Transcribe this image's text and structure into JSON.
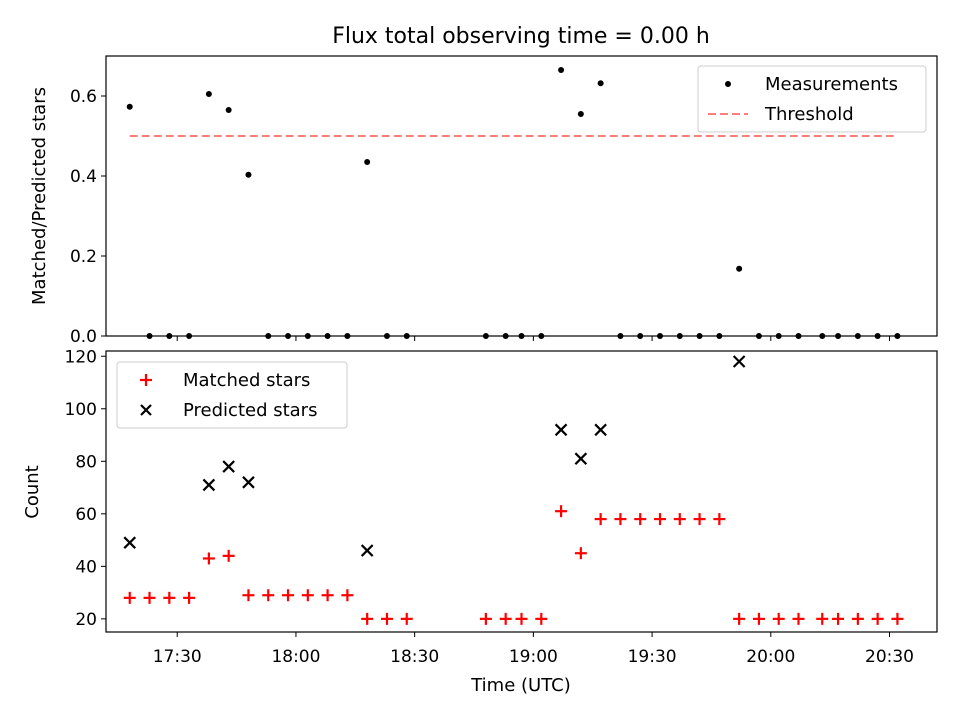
{
  "chart_data": [
    {
      "type": "scatter",
      "title": "Flux total observing time = 0.00 h",
      "xlabel": "",
      "ylabel": "Matched/Predicted stars",
      "ylim": [
        0.0,
        0.7
      ],
      "yticks": [
        0.0,
        0.2,
        0.4,
        0.6
      ],
      "ytick_labels": [
        "0.0",
        "0.2",
        "0.4",
        "0.6"
      ],
      "xlim": [
        "17:12",
        "20:42"
      ],
      "grid": false,
      "legend_position": "top-right",
      "series": [
        {
          "name": "Measurements",
          "kind": "points",
          "color": "#000000",
          "x": [
            "17:18",
            "17:23",
            "17:28",
            "17:33",
            "17:38",
            "17:43",
            "17:48",
            "17:53",
            "17:58",
            "18:03",
            "18:08",
            "18:13",
            "18:18",
            "18:23",
            "18:28",
            "18:48",
            "18:53",
            "18:57",
            "19:02",
            "19:07",
            "19:12",
            "19:17",
            "19:22",
            "19:27",
            "19:32",
            "19:37",
            "19:42",
            "19:47",
            "19:52",
            "19:57",
            "20:02",
            "20:07",
            "20:13",
            "20:17",
            "20:22",
            "20:27",
            "20:32"
          ],
          "y": [
            0.573,
            0.0,
            0.0,
            0.0,
            0.605,
            0.565,
            0.403,
            0.0,
            0.0,
            0.0,
            0.0,
            0.0,
            0.435,
            0.0,
            0.0,
            0.0,
            0.0,
            0.0,
            0.0,
            0.665,
            0.555,
            0.632,
            0.0,
            0.0,
            0.0,
            0.0,
            0.0,
            0.0,
            0.168,
            0.0,
            0.0,
            0.0,
            0.0,
            0.0,
            0.0,
            0.0,
            0.0
          ]
        },
        {
          "name": "Threshold",
          "kind": "dashed-line",
          "color": "#ff7f7f",
          "x": [
            "17:18",
            "20:32"
          ],
          "y": [
            0.5,
            0.5
          ]
        }
      ]
    },
    {
      "type": "scatter",
      "xlabel": "Time (UTC)",
      "ylabel": "Count",
      "ylim": [
        15,
        122
      ],
      "yticks": [
        20,
        40,
        60,
        80,
        100,
        120
      ],
      "ytick_labels": [
        "20",
        "40",
        "60",
        "80",
        "100",
        "120"
      ],
      "xlim": [
        "17:12",
        "20:42"
      ],
      "xticks": [
        "17:30",
        "18:00",
        "18:30",
        "19:00",
        "19:30",
        "20:00",
        "20:30"
      ],
      "xtick_labels": [
        "17:30",
        "18:00",
        "18:30",
        "19:00",
        "19:30",
        "20:00",
        "20:30"
      ],
      "grid": false,
      "legend_position": "top-left",
      "series": [
        {
          "name": "Matched stars",
          "kind": "plus",
          "color": "#ff0000",
          "x": [
            "17:18",
            "17:23",
            "17:28",
            "17:33",
            "17:38",
            "17:43",
            "17:48",
            "17:53",
            "17:58",
            "18:03",
            "18:08",
            "18:13",
            "18:18",
            "18:23",
            "18:28",
            "18:48",
            "18:53",
            "18:57",
            "19:02",
            "19:07",
            "19:12",
            "19:17",
            "19:22",
            "19:27",
            "19:32",
            "19:37",
            "19:42",
            "19:47",
            "19:52",
            "19:57",
            "20:02",
            "20:07",
            "20:13",
            "20:17",
            "20:22",
            "20:27",
            "20:32"
          ],
          "y": [
            28,
            28,
            28,
            28,
            43,
            44,
            29,
            29,
            29,
            29,
            29,
            29,
            20,
            20,
            20,
            20,
            20,
            20,
            20,
            61,
            45,
            58,
            58,
            58,
            58,
            58,
            58,
            58,
            20,
            20,
            20,
            20,
            20,
            20,
            20,
            20,
            20
          ]
        },
        {
          "name": "Predicted stars",
          "kind": "x",
          "color": "#000000",
          "x": [
            "17:18",
            "17:38",
            "17:43",
            "17:48",
            "18:18",
            "19:07",
            "19:12",
            "19:17",
            "19:52"
          ],
          "y": [
            49,
            71,
            78,
            72,
            46,
            92,
            81,
            92,
            118
          ]
        }
      ]
    }
  ]
}
